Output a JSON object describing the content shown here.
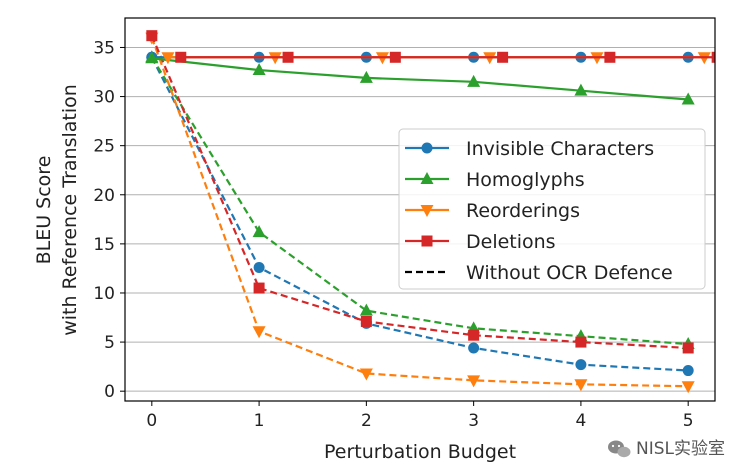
{
  "chart_data": {
    "type": "line",
    "xlabel": "Perturbation Budget",
    "ylabel_lines": [
      "BLEU Score",
      "with Reference Translation"
    ],
    "x": [
      0,
      1,
      2,
      3,
      4,
      5
    ],
    "xticks": [
      "0",
      "1",
      "2",
      "3",
      "4",
      "5"
    ],
    "yticks": [
      "0",
      "5",
      "10",
      "15",
      "20",
      "25",
      "30",
      "35"
    ],
    "xlim": [
      -0.25,
      5.25
    ],
    "ylim": [
      -1.0,
      38.0
    ],
    "grid": "horizontal",
    "legend_position": "center-right",
    "series": [
      {
        "name": "Invisible Characters",
        "color": "#1f77b4",
        "marker": "circle",
        "style": "solid",
        "x": [
          0,
          1,
          2,
          3,
          4,
          5
        ],
        "values": [
          34.0,
          34.0,
          34.0,
          34.0,
          34.0,
          34.0
        ]
      },
      {
        "name": "Homoglyphs",
        "color": "#2ca02c",
        "marker": "triangle-up",
        "style": "solid",
        "x": [
          0,
          1,
          2,
          3,
          4,
          5
        ],
        "values": [
          33.9,
          32.7,
          31.9,
          31.5,
          30.6,
          29.7
        ]
      },
      {
        "name": "Reorderings",
        "color": "#ff7f0e",
        "marker": "triangle-down",
        "style": "solid",
        "x": [
          0.15,
          1.15,
          2.15,
          3.15,
          4.15,
          5.15
        ],
        "values": [
          34.0,
          34.0,
          34.0,
          34.0,
          34.0,
          34.0
        ]
      },
      {
        "name": "Deletions",
        "color": "#d62728",
        "marker": "square",
        "style": "solid",
        "x": [
          0.27,
          1.27,
          2.27,
          3.27,
          4.27,
          5.27
        ],
        "values": [
          34.0,
          34.0,
          34.0,
          34.0,
          34.0,
          34.0
        ]
      },
      {
        "name": "",
        "color": "#1f77b4",
        "marker": "circle",
        "style": "dashed",
        "x": [
          0,
          1,
          2,
          3,
          4,
          5
        ],
        "values": [
          34.0,
          12.6,
          6.9,
          4.4,
          2.7,
          2.1
        ]
      },
      {
        "name": "",
        "color": "#2ca02c",
        "marker": "triangle-up",
        "style": "dashed",
        "x": [
          0,
          1,
          2,
          3,
          4,
          5
        ],
        "values": [
          34.0,
          16.2,
          8.2,
          6.4,
          5.6,
          4.8
        ]
      },
      {
        "name": "",
        "color": "#ff7f0e",
        "marker": "triangle-down",
        "style": "dashed",
        "x": [
          0,
          1,
          2,
          3,
          4,
          5
        ],
        "values": [
          36.0,
          6.1,
          1.8,
          1.1,
          0.7,
          0.5
        ]
      },
      {
        "name": "",
        "color": "#d62728",
        "marker": "square",
        "style": "dashed",
        "x": [
          0,
          1,
          2,
          3,
          4,
          5
        ],
        "values": [
          36.2,
          10.5,
          7.1,
          5.7,
          5.0,
          4.4
        ]
      }
    ],
    "legend": [
      {
        "label": "Invisible Characters",
        "color": "#1f77b4",
        "marker": "circle",
        "style": "solid"
      },
      {
        "label": "Homoglyphs",
        "color": "#2ca02c",
        "marker": "triangle-up",
        "style": "solid"
      },
      {
        "label": "Reorderings",
        "color": "#ff7f0e",
        "marker": "triangle-down",
        "style": "solid"
      },
      {
        "label": "Deletions",
        "color": "#d62728",
        "marker": "square",
        "style": "solid"
      },
      {
        "label": "Without OCR Defence",
        "color": "#000000",
        "marker": "none",
        "style": "dashed"
      }
    ]
  },
  "watermark": {
    "text": "NISL实验室",
    "icon": "wechat-icon"
  }
}
